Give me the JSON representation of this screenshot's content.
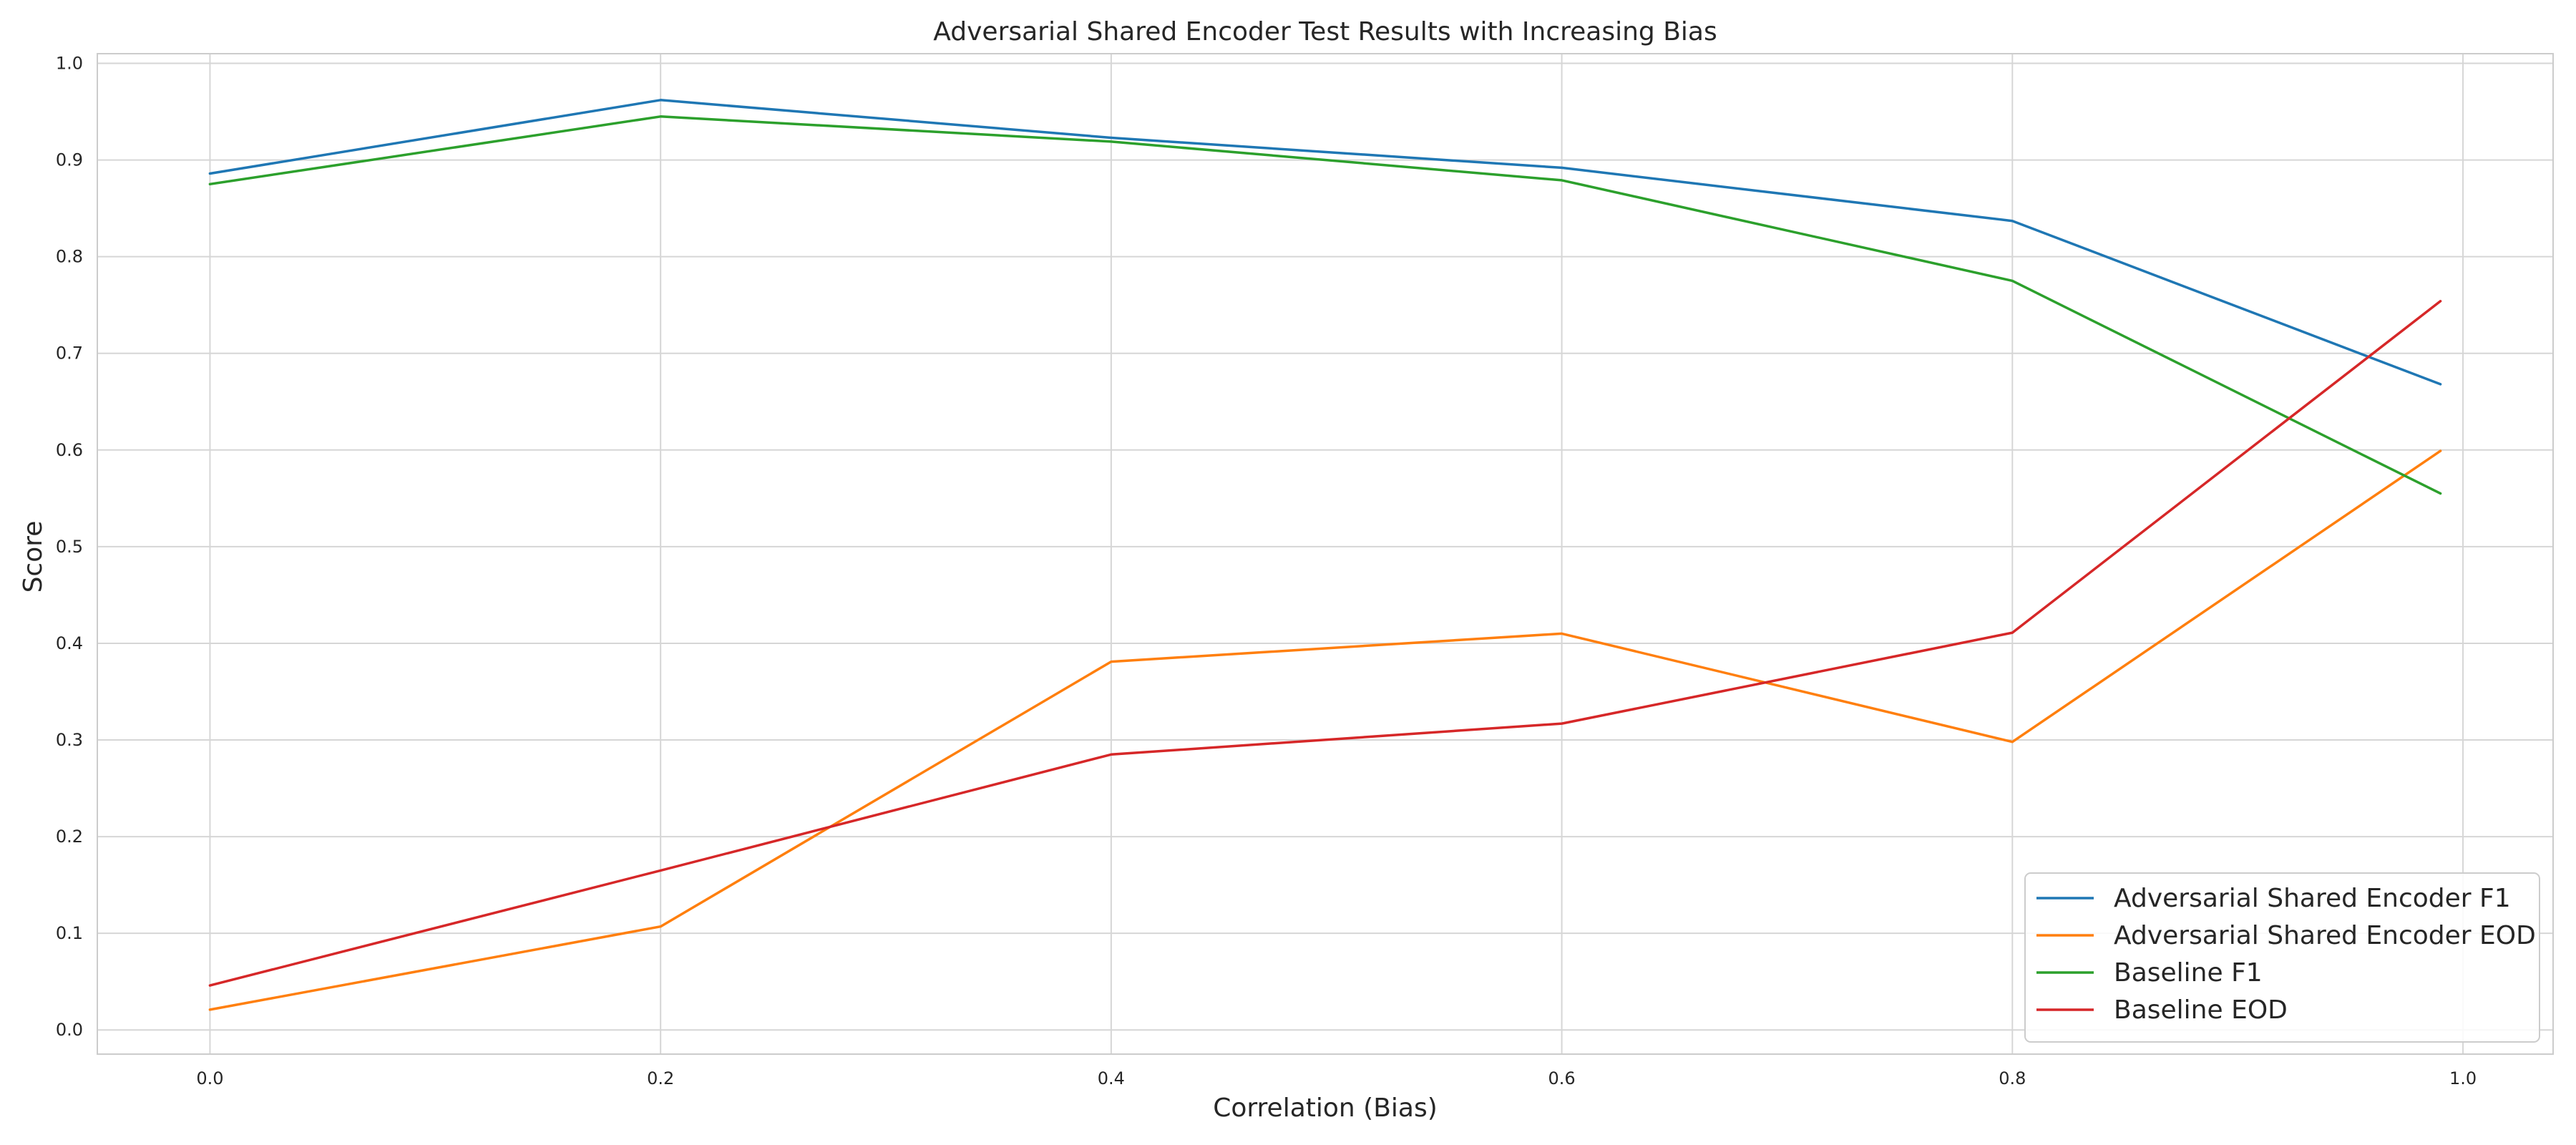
{
  "chart_data": {
    "type": "line",
    "title": "Adversarial Shared Encoder Test Results with Increasing Bias",
    "xlabel": "Correlation (Bias)",
    "ylabel": "Score",
    "xlim": [
      -0.05,
      1.04
    ],
    "ylim": [
      -0.025,
      1.01
    ],
    "xticks": [
      0.0,
      0.2,
      0.4,
      0.6,
      0.8,
      1.0
    ],
    "xtick_labels": [
      "0.0",
      "0.2",
      "0.4",
      "0.6",
      "0.8",
      "1.0"
    ],
    "yticks": [
      0.0,
      0.1,
      0.2,
      0.3,
      0.4,
      0.5,
      0.6,
      0.7,
      0.8,
      0.9,
      1.0
    ],
    "ytick_labels": [
      "0.0",
      "0.1",
      "0.2",
      "0.3",
      "0.4",
      "0.5",
      "0.6",
      "0.7",
      "0.8",
      "0.9",
      "1.0"
    ],
    "grid": true,
    "legend_position": "bottom-right",
    "x": [
      0.0,
      0.2,
      0.4,
      0.6,
      0.8,
      0.99
    ],
    "series": [
      {
        "name": "Adversarial Shared Encoder F1",
        "color": "#1f77b4",
        "values": [
          0.886,
          0.962,
          0.923,
          0.892,
          0.837,
          0.668
        ]
      },
      {
        "name": "Adversarial Shared Encoder EOD",
        "color": "#ff7f0e",
        "values": [
          0.021,
          0.107,
          0.381,
          0.41,
          0.298,
          0.599
        ]
      },
      {
        "name": "Baseline F1",
        "color": "#2ca02c",
        "values": [
          0.875,
          0.945,
          0.919,
          0.879,
          0.775,
          0.555
        ]
      },
      {
        "name": "Baseline EOD",
        "color": "#d62728",
        "values": [
          0.046,
          0.165,
          0.285,
          0.317,
          0.411,
          0.754
        ]
      }
    ]
  }
}
